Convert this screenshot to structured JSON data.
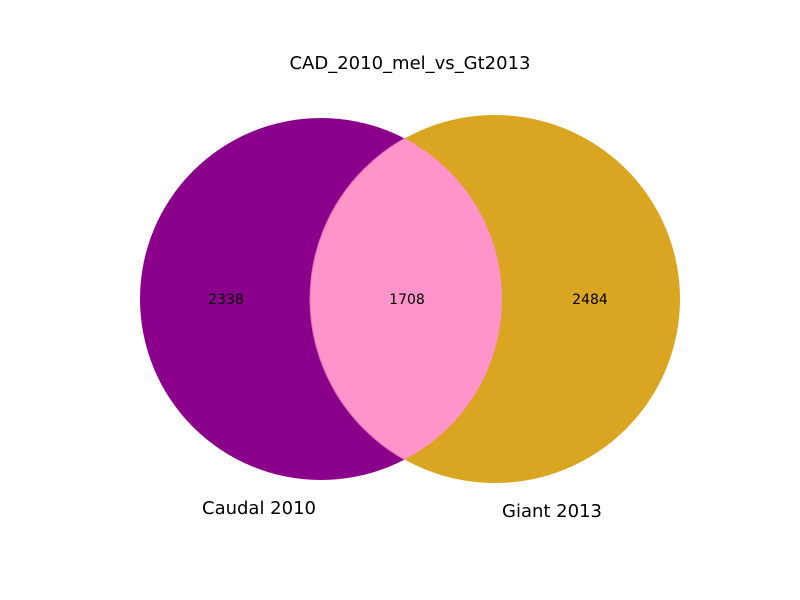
{
  "title": "CAD_2010_mel_vs_Gt2013",
  "sets": [
    {
      "name": "Caudal 2010",
      "only_count": "2338",
      "color": "#8B008B"
    },
    {
      "name": "Giant 2013",
      "only_count": "2484",
      "color": "#DAA520"
    }
  ],
  "intersection": {
    "count": "1708",
    "color": "#FF94CB"
  }
}
